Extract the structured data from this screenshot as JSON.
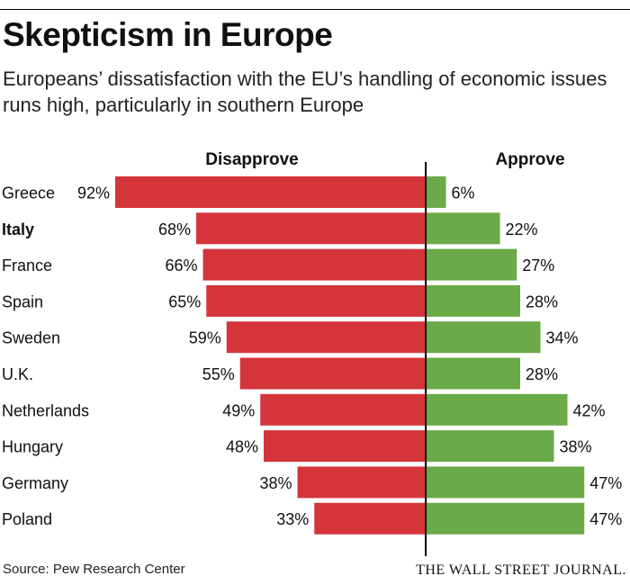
{
  "title": "Skepticism in Europe",
  "subtitle": "Europeans’ dissatisfaction with the EU’s handling of economic issues runs high, particularly in southern Europe",
  "source": "Source: Pew Research Center",
  "brand": "THE WALL STREET JOURNAL.",
  "colors": {
    "disapprove": "#d5343b",
    "approve": "#6aaa48",
    "axis": "#000000",
    "text": "#111111"
  },
  "chart_data": {
    "type": "bar",
    "orientation": "horizontal-diverging",
    "categories": [
      "Greece",
      "Italy",
      "France",
      "Spain",
      "Sweden",
      "U.K.",
      "Netherlands",
      "Hungary",
      "Germany",
      "Poland"
    ],
    "emphasized_category": "Italy",
    "series": [
      {
        "name": "Disapprove",
        "values": [
          92,
          68,
          66,
          65,
          59,
          55,
          49,
          48,
          38,
          33
        ],
        "labels": [
          "92%",
          "68%",
          "66%",
          "65%",
          "59%",
          "55%",
          "49%",
          "48%",
          "38%",
          "33%"
        ]
      },
      {
        "name": "Approve",
        "values": [
          6,
          22,
          27,
          28,
          34,
          28,
          42,
          38,
          47,
          47
        ],
        "labels": [
          "6%",
          "22%",
          "27%",
          "28%",
          "34%",
          "28%",
          "42%",
          "38%",
          "47%",
          "47%"
        ]
      }
    ],
    "unit": "%"
  }
}
